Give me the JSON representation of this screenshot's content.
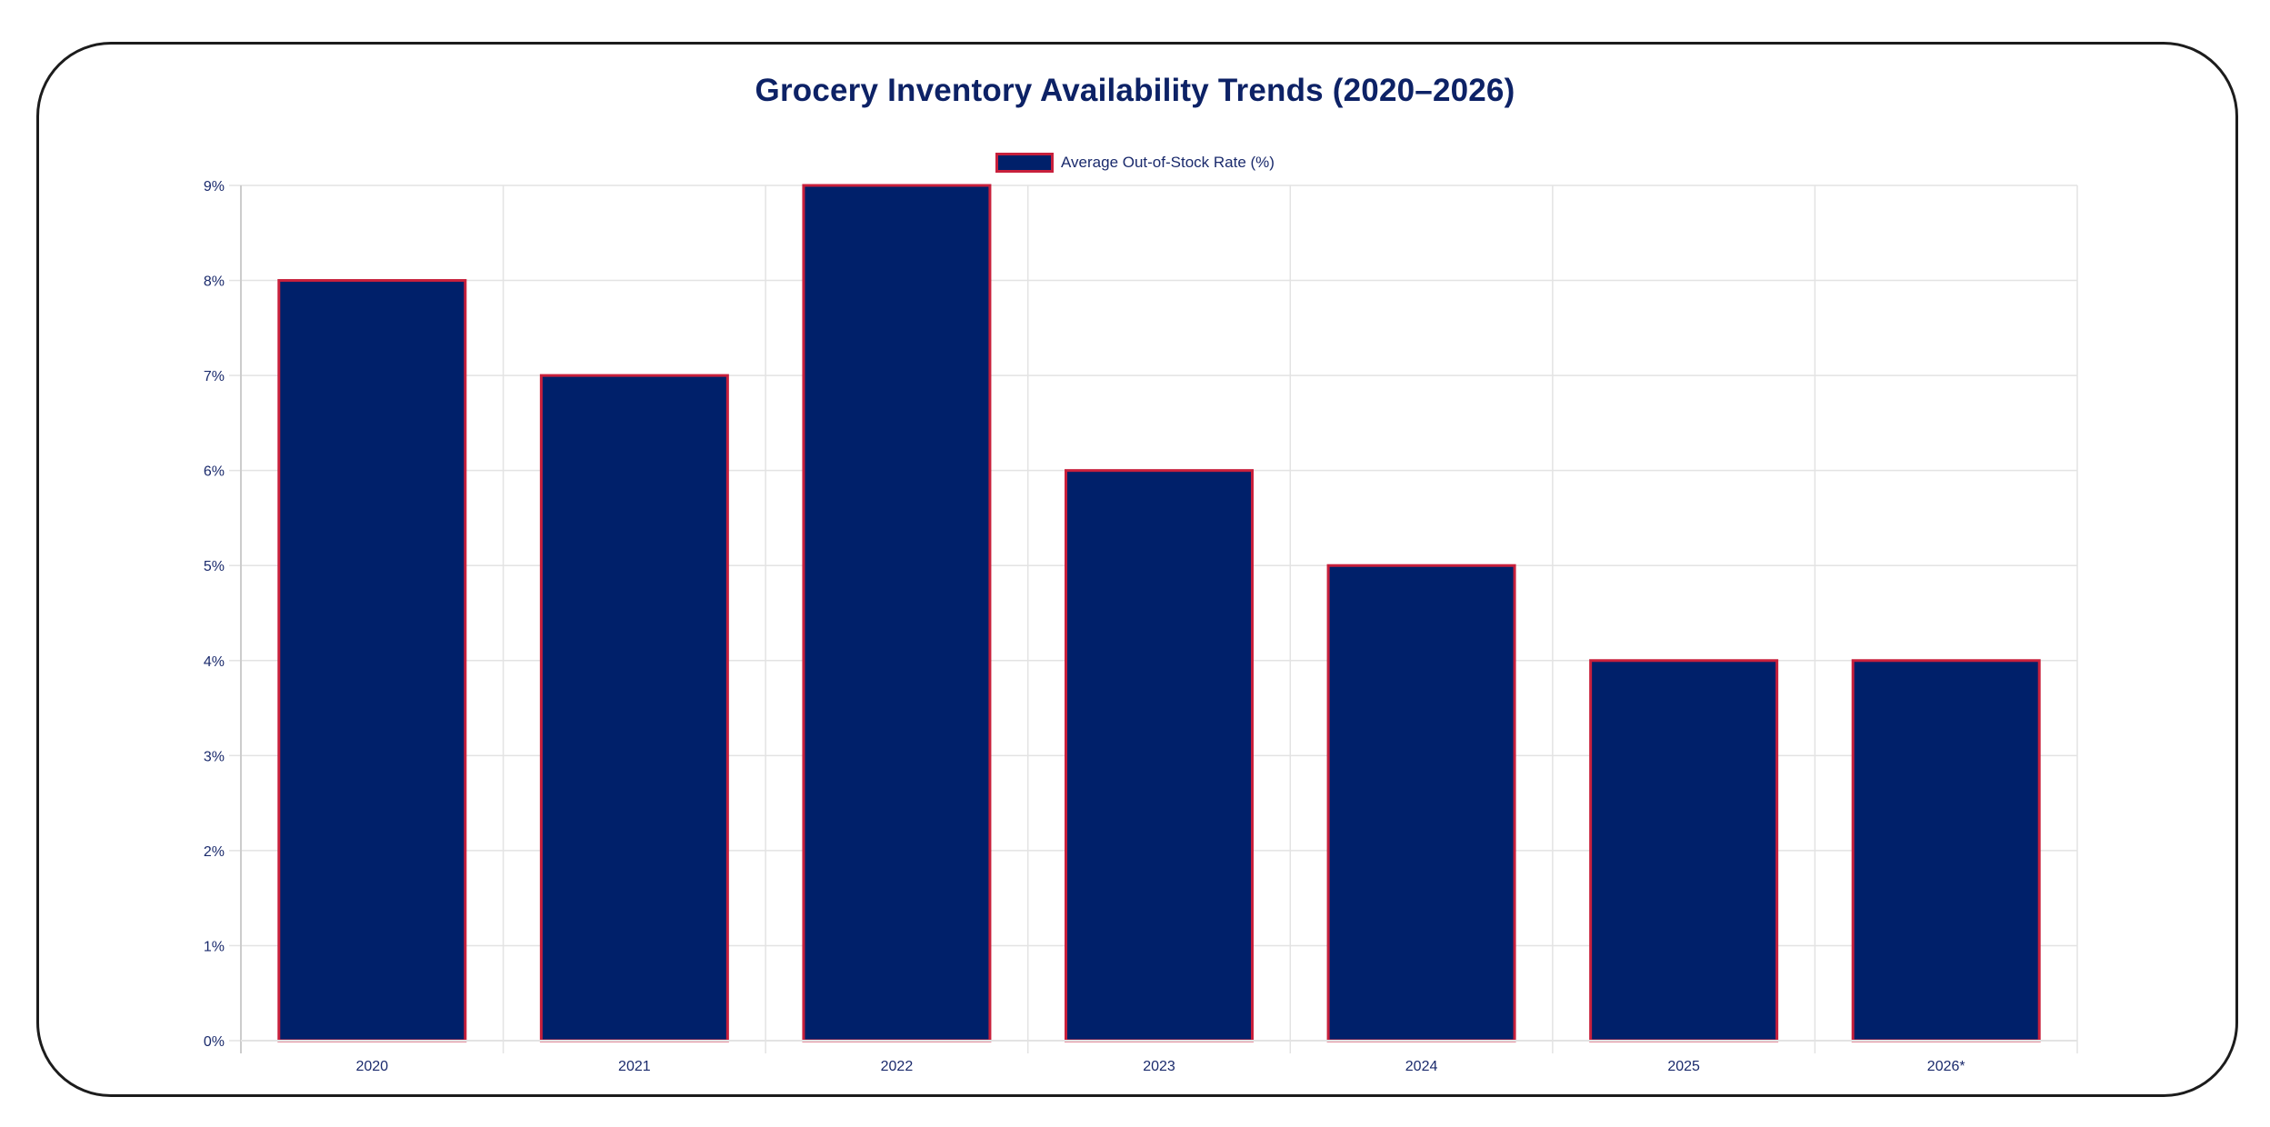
{
  "chart_data": {
    "type": "bar",
    "title": "Grocery Inventory Availability Trends (2020–2026)",
    "xlabel": "",
    "ylabel": "",
    "categories": [
      "2020",
      "2021",
      "2022",
      "2023",
      "2024",
      "2025",
      "2026*"
    ],
    "series": [
      {
        "name": "Average Out-of-Stock Rate (%)",
        "values": [
          8,
          7,
          9,
          6,
          5,
          4,
          4
        ],
        "fill_color": "#00206a",
        "border_color": "#c8203c"
      }
    ],
    "ylim": [
      0,
      9
    ],
    "yticks": [
      0,
      1,
      2,
      3,
      4,
      5,
      6,
      7,
      8,
      9
    ],
    "ytick_labels": [
      "0%",
      "1%",
      "2%",
      "3%",
      "4%",
      "5%",
      "6%",
      "7%",
      "8%",
      "9%"
    ],
    "grid": true,
    "legend_position": "top-center"
  },
  "colors": {
    "title": "#0d2266",
    "tick_label": "#1a2a6c",
    "grid": "#e3e3e3",
    "axis": "#cccccc"
  }
}
